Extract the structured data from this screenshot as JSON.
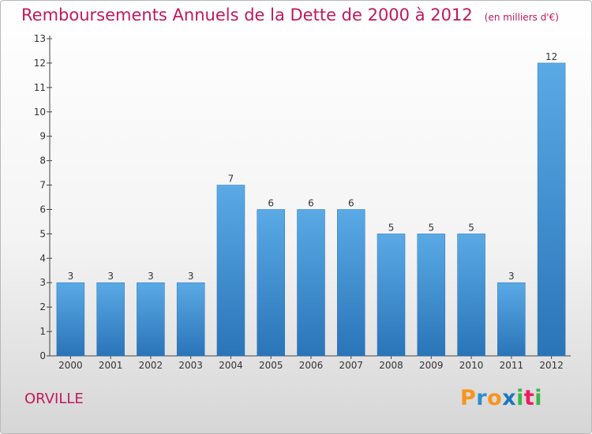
{
  "title": "Remboursements Annuels de la Dette de 2000 à 2012",
  "subtitle": "(en milliers d'€)",
  "town": "ORVILLE",
  "logo": {
    "letters": [
      "P",
      "r",
      "o",
      "x",
      "i",
      "t",
      "i"
    ],
    "colors": [
      "#f7941d",
      "#2e8bd1",
      "#f7941d",
      "#1b75bc",
      "#3cb54a",
      "#ed1c5c",
      "#3cb54a"
    ]
  },
  "colors": {
    "bar": "#4a9ddc",
    "bar_dark": "#2a74b8",
    "title": "#c2185b"
  },
  "chart_data": {
    "type": "bar",
    "categories": [
      "2000",
      "2001",
      "2002",
      "2003",
      "2004",
      "2005",
      "2006",
      "2007",
      "2008",
      "2009",
      "2010",
      "2011",
      "2012"
    ],
    "values": [
      3,
      3,
      3,
      3,
      7,
      6,
      6,
      6,
      5,
      5,
      5,
      3,
      12
    ],
    "data_labels": [
      "3",
      "3",
      "3",
      "3",
      "7",
      "6",
      "6",
      "6",
      "5",
      "5",
      "5",
      "3",
      "12"
    ],
    "y_ticks": [
      "0",
      "1",
      "2",
      "3",
      "4",
      "5",
      "6",
      "7",
      "8",
      "9",
      "10",
      "11",
      "12",
      "13"
    ],
    "ylim": [
      0,
      13
    ],
    "grid": false,
    "title": "Remboursements Annuels de la Dette de 2000 à 2012",
    "subtitle": "(en milliers d'€)"
  }
}
